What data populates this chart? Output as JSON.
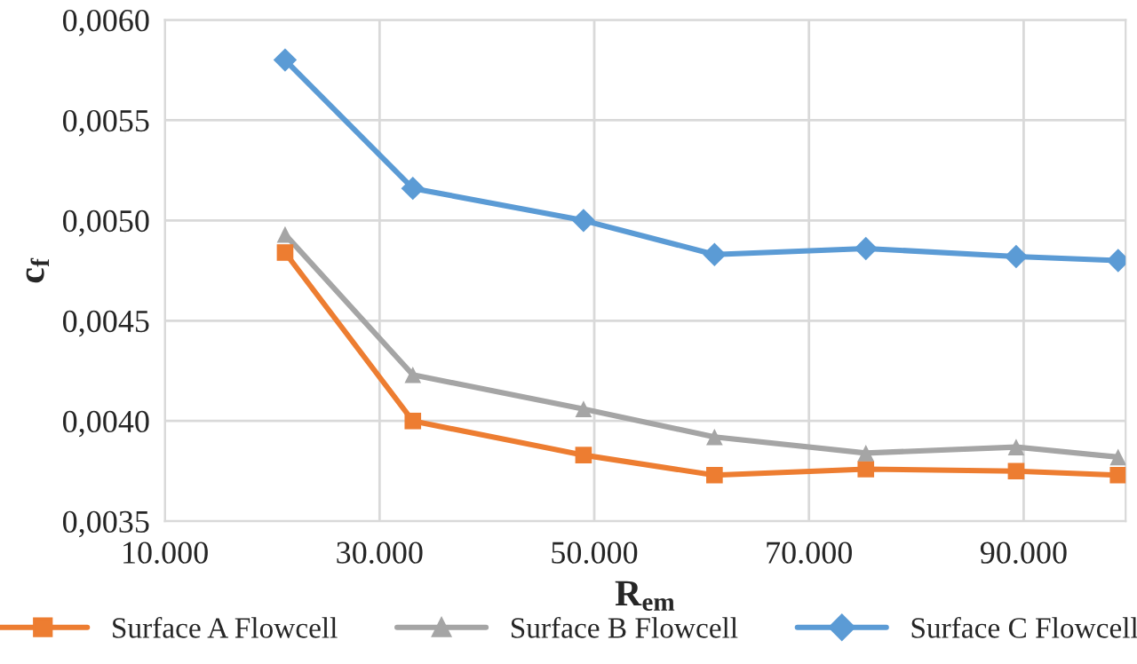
{
  "chart_data": {
    "type": "line",
    "xlabel": "R$_{em}$",
    "ylabel": "c$_{f}$",
    "xlim": [
      10000,
      99500
    ],
    "xticks": [
      {
        "value": 10000,
        "label": "10.000"
      },
      {
        "value": 30000,
        "label": "30.000"
      },
      {
        "value": 50000,
        "label": "50.000"
      },
      {
        "value": 70000,
        "label": "70.000"
      },
      {
        "value": 90000,
        "label": "90.000"
      }
    ],
    "ylim": [
      0.0035,
      0.006
    ],
    "yticks": [
      {
        "value": 0.0035,
        "label": "0,0035"
      },
      {
        "value": 0.004,
        "label": "0,0040"
      },
      {
        "value": 0.0045,
        "label": "0,0045"
      },
      {
        "value": 0.005,
        "label": "0,0050"
      },
      {
        "value": 0.0055,
        "label": "0,0055"
      },
      {
        "value": 0.006,
        "label": "0,0060"
      }
    ],
    "grid": true,
    "legend": "bottom",
    "series": [
      {
        "name": "Surface A Flowcell",
        "color": "#ed7d31",
        "marker": "square",
        "x": [
          21200,
          33100,
          49000,
          61200,
          75300,
          89300,
          98800
        ],
        "values": [
          0.00484,
          0.004,
          0.00383,
          0.00373,
          0.00376,
          0.00375,
          0.00373
        ]
      },
      {
        "name": "Surface B Flowcell",
        "color": "#a5a5a5",
        "marker": "triangle",
        "x": [
          21200,
          33100,
          49000,
          61200,
          75300,
          89300,
          98800
        ],
        "values": [
          0.00493,
          0.00423,
          0.00406,
          0.00392,
          0.00384,
          0.00387,
          0.00382
        ]
      },
      {
        "name": "Surface C Flowcell",
        "color": "#5b9bd5",
        "marker": "diamond",
        "x": [
          21200,
          33100,
          49000,
          61200,
          75300,
          89300,
          98800
        ],
        "values": [
          0.0058,
          0.00516,
          0.005,
          0.00483,
          0.00486,
          0.00482,
          0.0048
        ]
      }
    ]
  }
}
